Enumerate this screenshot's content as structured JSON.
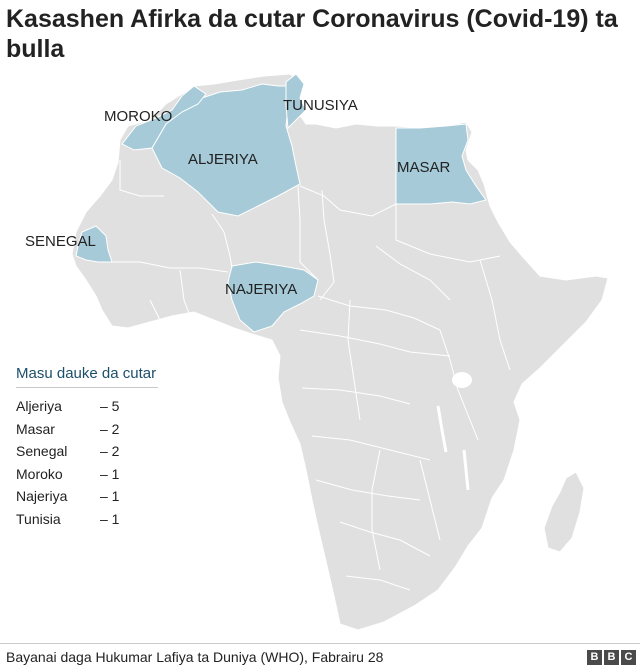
{
  "title": "Kasashen Afirka da cutar Coronavirus (Covid-19) ta bulla",
  "colors": {
    "highlight": "#a6cad8",
    "land": "#e0e0e0",
    "border": "#ffffff",
    "legend_title": "#1d4f6b"
  },
  "map_labels": {
    "moroko": "MOROKO",
    "tunusiya": "TUNUSIYA",
    "aljeriya": "ALJERIYA",
    "masar": "MASAR",
    "senegal": "SENEGAL",
    "najeriya": "NAJERIYA"
  },
  "legend": {
    "title": "Masu dauke da cutar",
    "rows": [
      {
        "country": "Aljeriya",
        "count": "– 5"
      },
      {
        "country": "Masar",
        "count": "– 2"
      },
      {
        "country": "Senegal",
        "count": "– 2"
      },
      {
        "country": "Moroko",
        "count": "– 1"
      },
      {
        "country": "Najeriya",
        "count": "– 1"
      },
      {
        "country": "Tunisia",
        "count": "– 1"
      }
    ]
  },
  "source": "Bayanai daga Hukumar Lafiya ta Duniya (WHO), Fabrairu 28",
  "brand": [
    "B",
    "B",
    "C"
  ]
}
